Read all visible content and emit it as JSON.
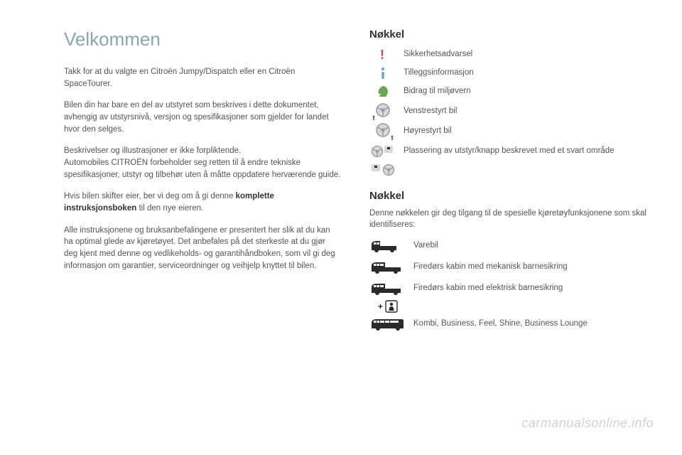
{
  "title": "Velkommen",
  "paragraphs": [
    "Takk for at du valgte en Citroën Jumpy/Dispatch eller en Citroën SpaceTourer.",
    "Bilen din har bare en del av utstyret som beskrives i dette dokumentet, avhengig av utstyrsnivå, versjon og spesifikasjoner som gjelder for landet hvor den selges.",
    "Beskrivelser og illustrasjoner er ikke forpliktende.\nAutomobiles CITROËN forbeholder seg retten til å endre tekniske spesifikasjoner, utstyr og tilbehør uten å måtte oppdatere herværende guide.",
    "Hvis bilen skifter eier, ber vi deg om å gi denne <b>komplette instruksjonsboken</b> til den nye eieren.",
    "Alle instruksjonene og bruksanbefalingene er presentert her slik at du kan ha optimal glede av kjøretøyet. Det anbefales på det sterkeste at du gjør deg kjent med denne og vedlikeholds- og garantihåndboken, som vil gi deg informasjon om garantier, serviceordninger og veihjelp knyttet til bilen."
  ],
  "key1": {
    "heading": "Nøkkel",
    "items": [
      {
        "icon": "exclaim",
        "label": "Sikkerhetsadvarsel"
      },
      {
        "icon": "info",
        "label": "Tilleggsinformasjon"
      },
      {
        "icon": "leaf",
        "label": "Bidrag til miljøvern"
      },
      {
        "icon": "wheel-l",
        "label": "Venstrestyrt bil"
      },
      {
        "icon": "wheel-r",
        "label": "Høyrestyrt bil"
      },
      {
        "icon": "wheel-dot",
        "label": "Plassering av utstyr/knapp beskrevet med et svart område"
      },
      {
        "icon": "wheel-dot2",
        "label": ""
      }
    ]
  },
  "key2": {
    "heading": "Nøkkel",
    "desc": "Denne nøkkelen gir deg tilgang til de spesielle kjøretøyfunksjonene som skal identifiseres:",
    "items": [
      {
        "icon": "van-s",
        "label": "Varebil"
      },
      {
        "icon": "van-m",
        "label": "Firedørs kabin med mekanisk barnesikring"
      },
      {
        "icon": "van-l",
        "label": "Firedørs kabin med elektrisk barnesikring",
        "plus": true
      },
      {
        "icon": "van-xl",
        "label": "Kombi, Business, Feel, Shine, Business Lounge"
      }
    ]
  },
  "watermark": "carmanualsonline.info",
  "colors": {
    "title": "#8aa4b0",
    "text": "#555555",
    "heading": "#333333",
    "warn": "#d44a4a",
    "info": "#5aa9c9",
    "leaf": "#6aa84f",
    "grey": "#bfbfbf",
    "darkgrey": "#8a8a8a",
    "van": "#2b2b2b"
  }
}
